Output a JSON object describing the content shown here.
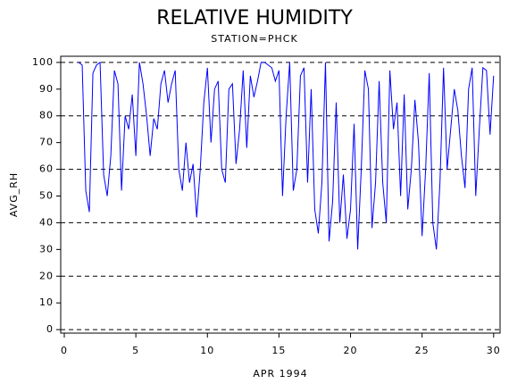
{
  "chart_data": {
    "type": "line",
    "title": "RELATIVE HUMIDITY",
    "subtitle": "STATION=PHCK",
    "x_label": "APR 1994",
    "y_label": "AVG_RH",
    "xlim": [
      -0.25,
      30.45
    ],
    "ylim": [
      -1.3,
      102.3
    ],
    "xticks": [
      0,
      5,
      10,
      15,
      20,
      25,
      30
    ],
    "yticks": [
      0,
      10,
      20,
      30,
      40,
      50,
      60,
      70,
      80,
      90,
      100
    ],
    "grid_at": [
      0,
      20,
      40,
      60,
      80,
      100
    ],
    "grid": true,
    "x": [
      1.0,
      1.25,
      1.5,
      1.75,
      2.0,
      2.25,
      2.5,
      2.75,
      3.0,
      3.25,
      3.5,
      3.75,
      4.0,
      4.25,
      4.5,
      4.75,
      5.0,
      5.25,
      5.5,
      5.75,
      6.0,
      6.25,
      6.5,
      6.75,
      7.0,
      7.25,
      7.5,
      7.75,
      8.0,
      8.25,
      8.5,
      8.75,
      9.0,
      9.25,
      9.5,
      9.75,
      10.0,
      10.25,
      10.5,
      10.75,
      11.0,
      11.25,
      11.5,
      11.75,
      12.0,
      12.25,
      12.5,
      12.75,
      13.0,
      13.25,
      13.5,
      13.75,
      14.0,
      14.25,
      14.5,
      14.75,
      15.0,
      15.25,
      15.5,
      15.75,
      16.0,
      16.25,
      16.5,
      16.75,
      17.0,
      17.25,
      17.5,
      17.75,
      18.0,
      18.25,
      18.5,
      18.75,
      19.0,
      19.25,
      19.5,
      19.75,
      20.0,
      20.25,
      20.5,
      20.75,
      21.0,
      21.25,
      21.5,
      21.75,
      22.0,
      22.25,
      22.5,
      22.75,
      23.0,
      23.25,
      23.5,
      23.75,
      24.0,
      24.25,
      24.5,
      24.75,
      25.0,
      25.25,
      25.5,
      25.75,
      26.0,
      26.25,
      26.5,
      26.75,
      27.0,
      27.25,
      27.5,
      27.75,
      28.0,
      28.25,
      28.5,
      28.75,
      29.0,
      29.25,
      29.5,
      29.75,
      30.0
    ],
    "series": [
      {
        "color": "#0000ff",
        "values": [
          100,
          99,
          52,
          44,
          96,
          99,
          100,
          58,
          50,
          65,
          97,
          92,
          52,
          80,
          75,
          88,
          65,
          100,
          92,
          80,
          65,
          79,
          75,
          92,
          97,
          85,
          92,
          97,
          60,
          52,
          70,
          55,
          62,
          42,
          60,
          85,
          98,
          70,
          90,
          93,
          60,
          55,
          90,
          92,
          62,
          75,
          97,
          68,
          95,
          87,
          93,
          100,
          100,
          99,
          98,
          93,
          97,
          50,
          80,
          100,
          52,
          60,
          95,
          98,
          55,
          90,
          45,
          36,
          55,
          100,
          33,
          48,
          85,
          40,
          58,
          34,
          45,
          77,
          30,
          60,
          97,
          90,
          38,
          55,
          93,
          55,
          40,
          97,
          75,
          85,
          50,
          88,
          45,
          60,
          86,
          70,
          35,
          60,
          96,
          40,
          30,
          55,
          98,
          60,
          75,
          90,
          82,
          65,
          53,
          90,
          98,
          50,
          75,
          98,
          97,
          73,
          95
        ]
      }
    ]
  }
}
